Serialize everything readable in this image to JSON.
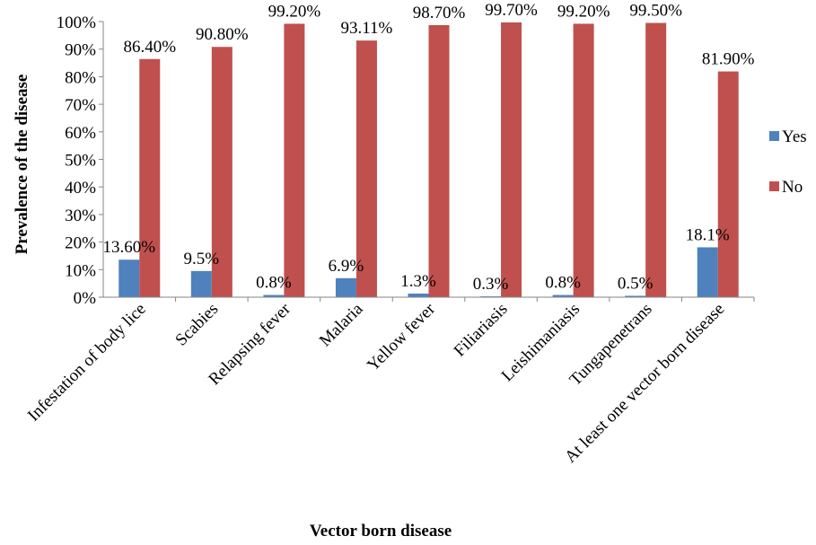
{
  "chart_data": {
    "type": "bar",
    "xlabel": "Vector born disease",
    "ylabel": "Prevalence of the disease",
    "ylim": [
      0,
      100
    ],
    "y_tick_step": 10,
    "y_tick_suffix": "%",
    "grid": false,
    "legend_position": "right",
    "categories": [
      "Infestation of body lice",
      "Scabies",
      "Relapsing fever",
      "Malaria",
      "Yellow fever",
      "Filiariasis",
      "Leishimaniasis",
      "Tungapenetrans",
      "At least one vector born disease"
    ],
    "series": [
      {
        "name": "Yes",
        "color": "#4f81bd",
        "values": [
          13.6,
          9.5,
          0.8,
          6.9,
          1.3,
          0.3,
          0.8,
          0.5,
          18.1
        ],
        "labels": [
          "13.60%",
          "9.5%",
          "0.8%",
          "6.9%",
          "1.3%",
          "0.3%",
          "0.8%",
          "0.5%",
          "18.1%"
        ]
      },
      {
        "name": "No",
        "color": "#c0504d",
        "values": [
          86.4,
          90.8,
          99.2,
          93.11,
          98.7,
          99.7,
          99.2,
          99.5,
          81.9
        ],
        "labels": [
          "86.40%",
          "90.80%",
          "99.20%",
          "93.11%",
          "98.70%",
          "99.70%",
          "99.20%",
          "99.50%",
          "81.90%"
        ]
      }
    ]
  }
}
